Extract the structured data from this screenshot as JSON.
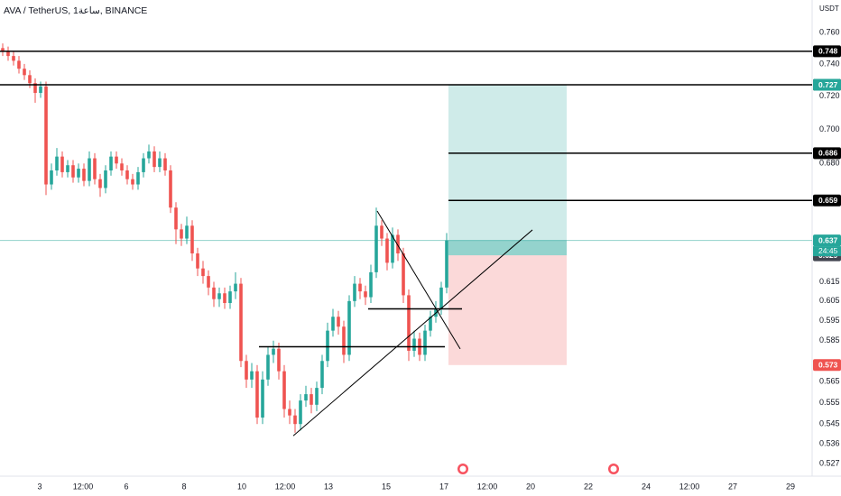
{
  "header": {
    "symbol_line": "AVA / TetherUS, 1ساعة, BINANCE",
    "currency": "USDT"
  },
  "chart_data": {
    "type": "candlestick",
    "log_scale": true,
    "up_color": "#26a69a",
    "down_color": "#ef5350",
    "xlim": [
      1.625,
      29.75
    ],
    "ylim": [
      0.5226,
      0.7813
    ],
    "xticks": [
      3,
      {
        "value": 4.5,
        "label": "12:00"
      },
      6,
      8,
      10,
      {
        "value": 11.5,
        "label": "12:00"
      },
      13,
      15,
      17,
      {
        "value": 18.5,
        "label": "12:00"
      },
      20,
      22,
      24,
      {
        "value": 25.5,
        "label": "12:00"
      },
      27,
      29
    ],
    "yticks": [
      {
        "value": 0.76,
        "label": "0.760"
      },
      {
        "value": 0.74,
        "label": "0.740"
      },
      {
        "value": 0.72,
        "label": "0.720"
      },
      {
        "value": 0.7,
        "label": "0.700"
      },
      {
        "value": 0.68,
        "label": "0.680"
      },
      0.615,
      0.605,
      0.595,
      0.585,
      0.565,
      0.555,
      0.545,
      0.536,
      0.527
    ],
    "x": [
      1.719,
      1.906,
      2.094,
      2.281,
      2.469,
      2.656,
      2.844,
      3.031,
      3.219,
      3.406,
      3.594,
      3.781,
      3.969,
      4.156,
      4.344,
      4.531,
      4.719,
      4.906,
      5.094,
      5.281,
      5.469,
      5.656,
      5.844,
      6.031,
      6.219,
      6.406,
      6.594,
      6.781,
      6.969,
      7.156,
      7.344,
      7.531,
      7.719,
      7.906,
      8.094,
      8.281,
      8.469,
      8.656,
      8.844,
      9.031,
      9.219,
      9.406,
      9.594,
      9.781,
      9.969,
      10.156,
      10.344,
      10.531,
      10.719,
      10.906,
      11.094,
      11.281,
      11.469,
      11.656,
      11.844,
      12.031,
      12.219,
      12.406,
      12.594,
      12.781,
      12.969,
      13.156,
      13.344,
      13.531,
      13.719,
      13.906,
      14.094,
      14.281,
      14.469,
      14.656,
      14.844,
      15.031,
      15.219,
      15.406,
      15.594,
      15.781,
      15.969,
      16.156,
      16.344,
      16.531,
      16.719,
      16.906,
      17.094
    ],
    "open": [
      0.75,
      0.748,
      0.745,
      0.742,
      0.737,
      0.733,
      0.728,
      0.722,
      0.726,
      0.668,
      0.676,
      0.684,
      0.675,
      0.679,
      0.672,
      0.677,
      0.67,
      0.683,
      0.671,
      0.666,
      0.676,
      0.684,
      0.68,
      0.676,
      0.671,
      0.668,
      0.675,
      0.683,
      0.687,
      0.678,
      0.683,
      0.676,
      0.655,
      0.643,
      0.638,
      0.645,
      0.63,
      0.622,
      0.618,
      0.612,
      0.606,
      0.609,
      0.604,
      0.61,
      0.614,
      0.575,
      0.566,
      0.57,
      0.548,
      0.566,
      0.578,
      0.581,
      0.57,
      0.552,
      0.549,
      0.545,
      0.556,
      0.559,
      0.554,
      0.562,
      0.575,
      0.59,
      0.597,
      0.592,
      0.578,
      0.605,
      0.614,
      0.61,
      0.607,
      0.62,
      0.645,
      0.638,
      0.625,
      0.64,
      0.63,
      0.608,
      0.58,
      0.586,
      0.578,
      0.59,
      0.597,
      0.601,
      0.612
    ],
    "high": [
      0.753,
      0.751,
      0.748,
      0.745,
      0.74,
      0.736,
      0.731,
      0.729,
      0.729,
      0.68,
      0.689,
      0.687,
      0.682,
      0.682,
      0.68,
      0.68,
      0.687,
      0.686,
      0.674,
      0.679,
      0.687,
      0.687,
      0.683,
      0.679,
      0.674,
      0.678,
      0.686,
      0.691,
      0.69,
      0.687,
      0.686,
      0.679,
      0.658,
      0.646,
      0.65,
      0.648,
      0.633,
      0.626,
      0.621,
      0.615,
      0.612,
      0.612,
      0.613,
      0.62,
      0.617,
      0.578,
      0.574,
      0.573,
      0.57,
      0.582,
      0.585,
      0.584,
      0.573,
      0.556,
      0.552,
      0.559,
      0.563,
      0.562,
      0.565,
      0.578,
      0.594,
      0.601,
      0.6,
      0.595,
      0.608,
      0.618,
      0.617,
      0.613,
      0.624,
      0.655,
      0.648,
      0.641,
      0.644,
      0.643,
      0.633,
      0.611,
      0.59,
      0.589,
      0.593,
      0.6,
      0.605,
      0.615,
      0.641
    ],
    "low": [
      0.745,
      0.742,
      0.739,
      0.734,
      0.73,
      0.725,
      0.716,
      0.719,
      0.662,
      0.665,
      0.673,
      0.672,
      0.672,
      0.669,
      0.669,
      0.667,
      0.667,
      0.668,
      0.661,
      0.663,
      0.673,
      0.677,
      0.673,
      0.668,
      0.665,
      0.665,
      0.672,
      0.68,
      0.675,
      0.675,
      0.673,
      0.652,
      0.635,
      0.634,
      0.635,
      0.626,
      0.618,
      0.614,
      0.608,
      0.602,
      0.602,
      0.601,
      0.601,
      0.606,
      0.572,
      0.562,
      0.562,
      0.545,
      0.545,
      0.563,
      0.574,
      0.566,
      0.548,
      0.545,
      0.541,
      0.542,
      0.553,
      0.55,
      0.551,
      0.559,
      0.572,
      0.587,
      0.588,
      0.574,
      0.575,
      0.602,
      0.606,
      0.603,
      0.604,
      0.617,
      0.634,
      0.621,
      0.622,
      0.626,
      0.604,
      0.575,
      0.577,
      0.575,
      0.575,
      0.587,
      0.594,
      0.598,
      0.609
    ],
    "close": [
      0.748,
      0.745,
      0.742,
      0.737,
      0.733,
      0.728,
      0.722,
      0.726,
      0.668,
      0.676,
      0.684,
      0.675,
      0.679,
      0.672,
      0.677,
      0.67,
      0.683,
      0.671,
      0.666,
      0.676,
      0.684,
      0.68,
      0.676,
      0.671,
      0.668,
      0.675,
      0.683,
      0.687,
      0.678,
      0.683,
      0.676,
      0.655,
      0.643,
      0.638,
      0.645,
      0.63,
      0.622,
      0.618,
      0.612,
      0.606,
      0.609,
      0.604,
      0.61,
      0.614,
      0.575,
      0.566,
      0.57,
      0.548,
      0.566,
      0.578,
      0.581,
      0.57,
      0.552,
      0.549,
      0.545,
      0.556,
      0.559,
      0.554,
      0.562,
      0.575,
      0.59,
      0.597,
      0.592,
      0.578,
      0.605,
      0.614,
      0.61,
      0.607,
      0.62,
      0.645,
      0.638,
      0.625,
      0.64,
      0.63,
      0.608,
      0.58,
      0.586,
      0.578,
      0.59,
      0.597,
      0.601,
      0.612,
      0.637
    ],
    "levels": [
      {
        "value": 0.748
      },
      {
        "value": 0.727
      },
      {
        "value": 0.686,
        "from": 17.156
      },
      {
        "value": 0.659,
        "from": 17.156
      }
    ],
    "segments": [
      {
        "x": [
          14.375,
          17.625
        ],
        "value": 0.601
      },
      {
        "x": [
          10.594,
          17.031
        ],
        "value": 0.582
      }
    ],
    "trendlines": [
      {
        "x": [
          11.781,
          20.063
        ],
        "y": [
          0.5396,
          0.6427
        ]
      },
      {
        "x": [
          14.688,
          17.563
        ],
        "y": [
          0.6531,
          0.5809
        ]
      }
    ],
    "position": {
      "x": [
        17.156,
        21.25
      ],
      "entry": 0.629,
      "target": 0.727,
      "stop": 0.573,
      "target_color": "#26a69a",
      "stop_color": "#ef5350",
      "entry_color": "#434651"
    },
    "price_line": {
      "value": 0.637,
      "color": "#26a69a",
      "countdown": "24:45"
    }
  }
}
